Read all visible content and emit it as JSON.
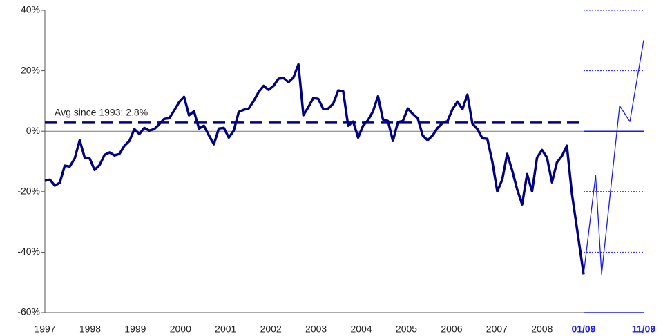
{
  "chart_data": [
    {
      "type": "line",
      "color": "#000080",
      "x": [
        1997,
        1997.11,
        1997.22,
        1997.33,
        1997.44,
        1997.55,
        1997.66,
        1997.77,
        1997.88,
        1997.99,
        1998.1,
        1998.21,
        1998.32,
        1998.43,
        1998.54,
        1998.65,
        1998.76,
        1998.87,
        1998.98,
        1999.09,
        1999.2,
        1999.31,
        1999.42,
        1999.53,
        1999.64,
        1999.75,
        1999.86,
        1999.97,
        2000.08,
        2000.19,
        2000.3,
        2000.41,
        2000.52,
        2000.63,
        2000.74,
        2000.85,
        2000.96,
        2001.07,
        2001.18,
        2001.29,
        2001.4,
        2001.51,
        2001.62,
        2001.73,
        2001.84,
        2001.95,
        2002.06,
        2002.17,
        2002.28,
        2002.39,
        2002.5,
        2002.61,
        2002.72,
        2002.83,
        2002.94,
        2003.05,
        2003.16,
        2003.27,
        2003.38,
        2003.49,
        2003.6,
        2003.71,
        2003.82,
        2003.93,
        2004.04,
        2004.15,
        2004.26,
        2004.37,
        2004.48,
        2004.59,
        2004.7,
        2004.81,
        2004.92,
        2005.03,
        2005.14,
        2005.25,
        2005.36,
        2005.47,
        2005.58,
        2005.69,
        2005.8,
        2005.91,
        2006.02,
        2006.13,
        2006.24,
        2006.35,
        2006.46,
        2006.57,
        2006.68,
        2006.79,
        2006.9,
        2007.01,
        2007.12,
        2007.23,
        2007.34,
        2007.45,
        2007.56,
        2007.67,
        2007.78,
        2007.89,
        2008,
        2008.11,
        2008.22,
        2008.33,
        2008.44,
        2008.55,
        2008.66,
        2008.92
      ],
      "values": [
        -16.4,
        -16,
        -18,
        -17,
        -11.4,
        -11.7,
        -9,
        -3,
        -8.7,
        -9,
        -12.8,
        -11.2,
        -7.8,
        -7,
        -8,
        -7.5,
        -4.8,
        -3.2,
        0.7,
        -0.9,
        1.1,
        0.2,
        0.7,
        2.3,
        4.1,
        4.3,
        6.8,
        9.6,
        11.4,
        5.3,
        6.6,
        0.9,
        1.8,
        -1.4,
        -4.3,
        0.9,
        1.1,
        -2.1,
        0.2,
        6.4,
        7.1,
        7.5,
        10,
        13,
        15,
        13.7,
        15,
        17.4,
        17.6,
        16.2,
        17.8,
        22.1,
        5.3,
        8,
        11,
        10.7,
        7.3,
        7.5,
        9.1,
        13.5,
        13.2,
        1.8,
        3.2,
        -2.1,
        1.8,
        3.7,
        6.6,
        11.6,
        3.9,
        3.4,
        -3.2,
        3,
        3.4,
        7.5,
        5.7,
        4.3,
        -1.4,
        -3,
        -1.4,
        1.1,
        2.7,
        3.4,
        7.3,
        9.8,
        7.3,
        12.1,
        2.5,
        0.7,
        -2.3,
        -2.5,
        -10,
        -19.9,
        -16,
        -7.5,
        -13,
        -19.2,
        -24.2,
        -14.2,
        -19.9,
        -8.7,
        -6.2,
        -8.7,
        -16.9,
        -10.3,
        -8.2,
        -4.8,
        -20.5,
        -47.3
      ],
      "xlim": [
        1997,
        2008.92
      ],
      "xticks": [
        1997,
        1998,
        1999,
        2000,
        2001,
        2002,
        2003,
        2004,
        2005,
        2006,
        2007,
        2008
      ],
      "ylim": [
        -60,
        40
      ],
      "yticks": [
        {
          "value": 40,
          "label": "40%"
        },
        {
          "value": 20,
          "label": "20%"
        },
        {
          "value": 0,
          "label": "0%"
        },
        {
          "value": -20,
          "label": "-20%"
        },
        {
          "value": -40,
          "label": "-40%"
        },
        {
          "value": -60,
          "label": "-60%"
        }
      ],
      "average": {
        "value": 2.8,
        "label": "Avg since 1993: 2.8%"
      }
    },
    {
      "type": "line",
      "color": "#1a1aee",
      "x": [
        1,
        3,
        4,
        7,
        8.7,
        11
      ],
      "values": [
        -47.3,
        -14.6,
        -47.3,
        8.4,
        3.2,
        30.1
      ],
      "xlim": [
        1,
        11
      ],
      "xticks": [
        {
          "value": 1,
          "label": "01/09"
        },
        {
          "value": 11,
          "label": "11/09"
        }
      ],
      "ylim": [
        -60,
        40
      ]
    }
  ]
}
